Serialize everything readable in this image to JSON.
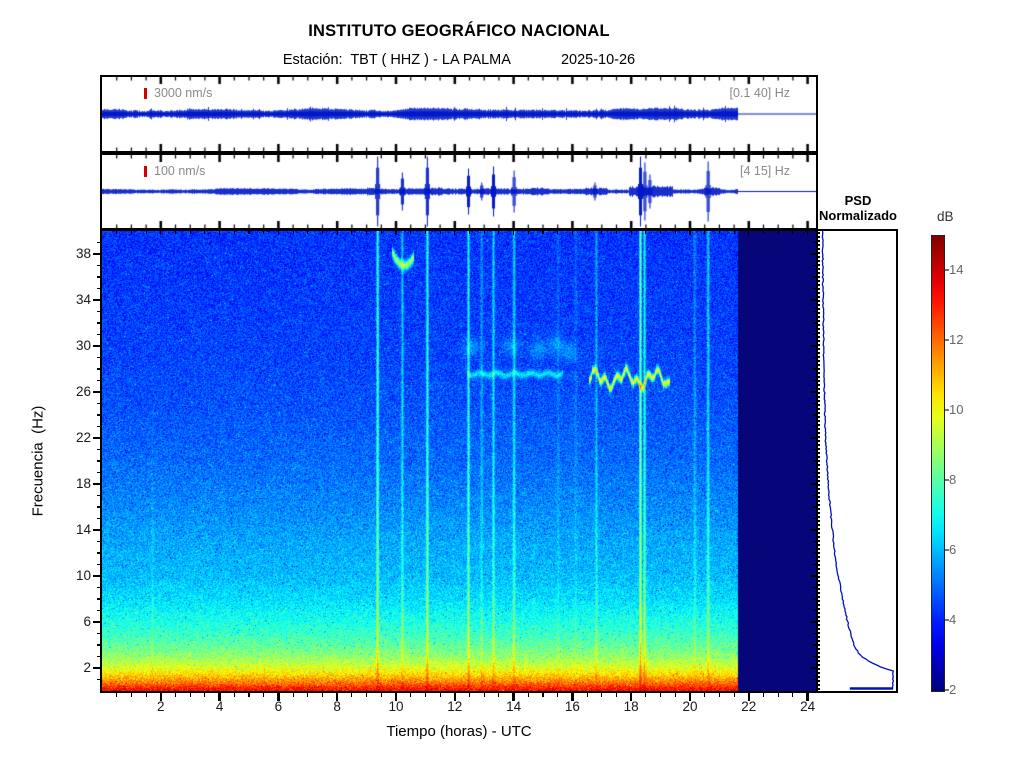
{
  "header": {
    "title": "INSTITUTO GEOGRÁFICO NACIONAL",
    "station": "Estación:  TBT ( HHZ ) - LA PALMA",
    "date": "2025-10-26"
  },
  "panel1": {
    "scale_label": "3000 nm/s",
    "band_label": "[0.1 40] Hz"
  },
  "panel2": {
    "scale_label": "100 nm/s",
    "band_label": "[4 15] Hz"
  },
  "axes": {
    "xlabel": "Tiempo (horas) - UTC",
    "ylabel": "Frecuencia  (Hz)"
  },
  "psd": {
    "title1": "PSD",
    "title2": "Normalizado"
  },
  "colorbar": {
    "label": "dB"
  },
  "colors": {
    "waveform": "#0018c8",
    "marker_red": "#d40000",
    "navy": "#06067a",
    "label_gray": "#8a8a8a",
    "tick_black": "#000000"
  },
  "chart_data": {
    "type": "heatmap",
    "title": "INSTITUTO GEOGRÁFICO NACIONAL",
    "subtitle": "Estación: TBT ( HHZ ) - LA PALMA  2025-10-26",
    "xlabel": "Tiempo (horas) - UTC",
    "ylabel": "Frecuencia (Hz)",
    "xlim": [
      0,
      24.3
    ],
    "ylim": [
      0,
      40
    ],
    "xticks": [
      2,
      4,
      6,
      8,
      10,
      12,
      14,
      16,
      18,
      20,
      22,
      24
    ],
    "yticks": [
      2,
      6,
      10,
      14,
      18,
      22,
      26,
      30,
      34,
      38
    ],
    "colorbar": {
      "label": "dB",
      "min": 2,
      "max": 15,
      "ticks": [
        2,
        4,
        6,
        8,
        10,
        12,
        14
      ],
      "colormap": "jet"
    },
    "data_end_hour": 21.62,
    "background_level_vs_freq": [
      [
        0,
        0.88
      ],
      [
        0.3,
        0.84
      ],
      [
        0.6,
        0.78
      ],
      [
        1,
        0.72
      ],
      [
        1.5,
        0.65
      ],
      [
        2,
        0.6
      ],
      [
        2.5,
        0.555
      ],
      [
        3,
        0.52
      ],
      [
        4,
        0.47
      ],
      [
        5,
        0.43
      ],
      [
        6,
        0.4
      ],
      [
        8,
        0.345
      ],
      [
        10,
        0.31
      ],
      [
        13,
        0.29
      ],
      [
        16,
        0.26
      ],
      [
        20,
        0.23
      ],
      [
        25,
        0.205
      ],
      [
        30,
        0.19
      ],
      [
        40,
        0.175
      ]
    ],
    "events": [
      {
        "t": 1.7,
        "intensity": 0.13,
        "low_only": true
      },
      {
        "t": 9.36,
        "intensity": 0.6
      },
      {
        "t": 10.2,
        "intensity": 0.34
      },
      {
        "t": 11.05,
        "intensity": 0.55
      },
      {
        "t": 12.45,
        "intensity": 0.5
      },
      {
        "t": 12.9,
        "intensity": 0.22
      },
      {
        "t": 13.3,
        "intensity": 0.38
      },
      {
        "t": 14.0,
        "intensity": 0.4
      },
      {
        "t": 15.5,
        "intensity": 0.12
      },
      {
        "t": 16.1,
        "intensity": 0.12
      },
      {
        "t": 16.8,
        "intensity": 0.26
      },
      {
        "t": 18.3,
        "intensity": 0.7
      },
      {
        "t": 18.44,
        "intensity": 0.5
      },
      {
        "t": 20.15,
        "intensity": 0.2
      },
      {
        "t": 20.6,
        "intensity": 0.4
      }
    ],
    "tremor_line": {
      "f_center": 27.15,
      "t_start": 16.55,
      "t_end": 19.3,
      "wiggle": 0.6
    },
    "faint_line": {
      "f_center": 27.55,
      "t_start": 12.4,
      "t_end": 15.65
    },
    "hook": {
      "t_start": 9.85,
      "t_end": 10.6,
      "f_start": 38.2,
      "f_min": 37.0,
      "f_end": 37.75
    },
    "blobs": [
      [
        13.9,
        30.0
      ],
      [
        14.85,
        29.7
      ],
      [
        15.4,
        30.2
      ],
      [
        15.85,
        29.5
      ],
      [
        12.55,
        29.9
      ]
    ],
    "waveforms": [
      {
        "name": "broadband",
        "scale": "3000 nm/s",
        "band": "[0.1 40] Hz",
        "end_hour": 21.62,
        "base_amp": 3.0
      },
      {
        "name": "filtered",
        "scale": "100 nm/s",
        "band": "[4 15] Hz",
        "end_hour": 21.62,
        "base_amp": 1.5,
        "spikes": [
          [
            9.36,
            35
          ],
          [
            10.2,
            19
          ],
          [
            11.05,
            35
          ],
          [
            12.45,
            23
          ],
          [
            12.9,
            9
          ],
          [
            13.3,
            25
          ],
          [
            14.0,
            21
          ],
          [
            16.75,
            9
          ],
          [
            18.3,
            35
          ],
          [
            18.45,
            29
          ],
          [
            18.62,
            17
          ],
          [
            20.6,
            30
          ]
        ]
      }
    ],
    "psd_curve": [
      [
        40,
        0.02
      ],
      [
        34,
        0.03
      ],
      [
        28,
        0.04
      ],
      [
        24,
        0.055
      ],
      [
        21,
        0.07
      ],
      [
        18,
        0.1
      ],
      [
        15,
        0.14
      ],
      [
        12,
        0.19
      ],
      [
        10,
        0.24
      ],
      [
        8,
        0.3
      ],
      [
        6.5,
        0.35
      ],
      [
        5.5,
        0.39
      ],
      [
        4.7,
        0.42
      ],
      [
        4,
        0.46
      ],
      [
        3.4,
        0.51
      ],
      [
        3,
        0.57
      ],
      [
        2.7,
        0.64
      ],
      [
        2.4,
        0.72
      ],
      [
        2.1,
        0.82
      ],
      [
        1.9,
        0.92
      ],
      [
        1.75,
        1.0
      ],
      [
        1.0,
        1.0
      ],
      [
        0.3,
        1.0
      ]
    ],
    "psd_bottom_bar": {
      "f": 0.22,
      "frac_start": 0.4,
      "frac_end": 1.0
    }
  }
}
